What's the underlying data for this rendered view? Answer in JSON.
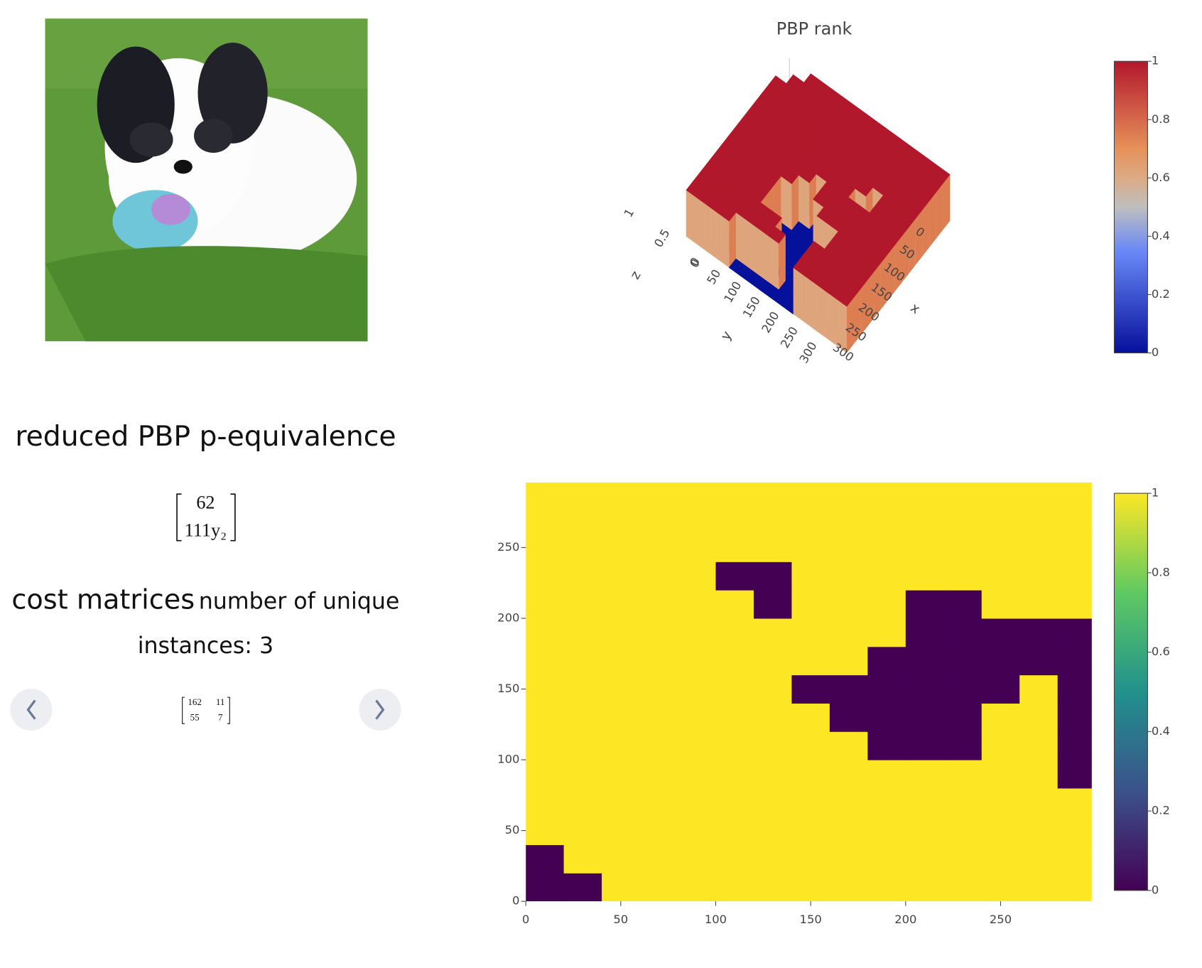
{
  "equivalence": {
    "title": "reduced PBP p-equivalence",
    "matrix": [
      62,
      "111y₂"
    ]
  },
  "cost_matrices": {
    "title": "cost matrices",
    "subtitle": "number of unique instances: 3",
    "matrix": [
      [
        162,
        11
      ],
      [
        55,
        7
      ]
    ]
  },
  "chart_data": [
    {
      "type": "surface",
      "title": "PBP rank",
      "xlabel": "x",
      "ylabel": "y",
      "zlabel": "z",
      "xlim": [
        0,
        300
      ],
      "ylim": [
        0,
        300
      ],
      "zlim": [
        0,
        1
      ],
      "xticks": [
        0,
        50,
        100,
        150,
        200,
        250,
        300
      ],
      "yticks": [
        0,
        50,
        100,
        150,
        200,
        250,
        300
      ],
      "zticks": [
        0,
        0.5,
        1
      ],
      "colorscale": [
        [
          0,
          "#05109b"
        ],
        [
          0.35,
          "#6a89f7"
        ],
        [
          0.5,
          "#bebebe"
        ],
        [
          0.6,
          "#dcaa84"
        ],
        [
          0.7,
          "#e6915a"
        ],
        [
          1,
          "#b2182b"
        ]
      ],
      "cticks": [
        0,
        0.2,
        0.4,
        0.6,
        0.8,
        1
      ],
      "z": [
        [
          0,
          0,
          1,
          1,
          1,
          1,
          1,
          1,
          1,
          1,
          1,
          1,
          1,
          1,
          1
        ],
        [
          0,
          1,
          1,
          1,
          1,
          1,
          1,
          1,
          1,
          1,
          1,
          1,
          1,
          1,
          1
        ],
        [
          1,
          1,
          1,
          1,
          1,
          1,
          1,
          1,
          1,
          1,
          1,
          1,
          1,
          1,
          1
        ],
        [
          1,
          1,
          1,
          1,
          1,
          1,
          1,
          1,
          1,
          1,
          1,
          1,
          1,
          1,
          1
        ],
        [
          1,
          1,
          1,
          1,
          1,
          1,
          1,
          1,
          1,
          1,
          1,
          1,
          1,
          1,
          0
        ],
        [
          1,
          1,
          1,
          1,
          1,
          1,
          1,
          1,
          1,
          0,
          0,
          0,
          1,
          1,
          0
        ],
        [
          1,
          1,
          1,
          1,
          1,
          1,
          1,
          1,
          0,
          0,
          0,
          0,
          1,
          1,
          0
        ],
        [
          1,
          1,
          1,
          1,
          1,
          1,
          1,
          0,
          0,
          0,
          0,
          0,
          0,
          1,
          0
        ],
        [
          1,
          1,
          1,
          1,
          1,
          1,
          1,
          1,
          1,
          0,
          0,
          0,
          0,
          0,
          0
        ],
        [
          1,
          1,
          1,
          1,
          1,
          1,
          1,
          1,
          1,
          1,
          0,
          0,
          0,
          0,
          0
        ],
        [
          1,
          1,
          1,
          1,
          1,
          1,
          0,
          1,
          1,
          1,
          0,
          0,
          1,
          1,
          1
        ],
        [
          1,
          1,
          1,
          1,
          1,
          0,
          0,
          1,
          1,
          1,
          1,
          1,
          1,
          1,
          1
        ],
        [
          1,
          1,
          1,
          1,
          1,
          1,
          1,
          1,
          1,
          1,
          1,
          1,
          1,
          1,
          1
        ],
        [
          1,
          1,
          1,
          1,
          1,
          1,
          1,
          1,
          1,
          1,
          1,
          1,
          1,
          1,
          1
        ],
        [
          1,
          1,
          1,
          1,
          1,
          1,
          1,
          1,
          1,
          1,
          1,
          1,
          1,
          1,
          1
        ]
      ]
    },
    {
      "type": "heatmap",
      "xlim": [
        0,
        298
      ],
      "ylim": [
        0,
        296
      ],
      "xticks": [
        0,
        50,
        100,
        150,
        200,
        250
      ],
      "yticks": [
        0,
        50,
        100,
        150,
        200,
        250
      ],
      "colorscale": [
        [
          0,
          "#440154"
        ],
        [
          0.25,
          "#3b528b"
        ],
        [
          0.5,
          "#21918c"
        ],
        [
          0.75,
          "#5ec962"
        ],
        [
          1,
          "#fde725"
        ]
      ],
      "cticks": [
        0,
        0.2,
        0.4,
        0.6,
        0.8,
        1
      ],
      "z": [
        [
          0,
          0,
          1,
          1,
          1,
          1,
          1,
          1,
          1,
          1,
          1,
          1,
          1,
          1,
          1
        ],
        [
          0,
          1,
          1,
          1,
          1,
          1,
          1,
          1,
          1,
          1,
          1,
          1,
          1,
          1,
          1
        ],
        [
          1,
          1,
          1,
          1,
          1,
          1,
          1,
          1,
          1,
          1,
          1,
          1,
          1,
          1,
          1
        ],
        [
          1,
          1,
          1,
          1,
          1,
          1,
          1,
          1,
          1,
          1,
          1,
          1,
          1,
          1,
          1
        ],
        [
          1,
          1,
          1,
          1,
          1,
          1,
          1,
          1,
          1,
          1,
          1,
          1,
          1,
          1,
          0
        ],
        [
          1,
          1,
          1,
          1,
          1,
          1,
          1,
          1,
          1,
          0,
          0,
          0,
          1,
          1,
          0
        ],
        [
          1,
          1,
          1,
          1,
          1,
          1,
          1,
          1,
          0,
          0,
          0,
          0,
          1,
          1,
          0
        ],
        [
          1,
          1,
          1,
          1,
          1,
          1,
          1,
          0,
          0,
          0,
          0,
          0,
          0,
          1,
          0
        ],
        [
          1,
          1,
          1,
          1,
          1,
          1,
          1,
          1,
          1,
          0,
          0,
          0,
          0,
          0,
          0
        ],
        [
          1,
          1,
          1,
          1,
          1,
          1,
          1,
          1,
          1,
          1,
          0,
          0,
          0,
          0,
          0
        ],
        [
          1,
          1,
          1,
          1,
          1,
          1,
          0,
          1,
          1,
          1,
          0,
          0,
          1,
          1,
          1
        ],
        [
          1,
          1,
          1,
          1,
          1,
          0,
          0,
          1,
          1,
          1,
          1,
          1,
          1,
          1,
          1
        ],
        [
          1,
          1,
          1,
          1,
          1,
          1,
          1,
          1,
          1,
          1,
          1,
          1,
          1,
          1,
          1
        ],
        [
          1,
          1,
          1,
          1,
          1,
          1,
          1,
          1,
          1,
          1,
          1,
          1,
          1,
          1,
          1
        ],
        [
          1,
          1,
          1,
          1,
          1,
          1,
          1,
          1,
          1,
          1,
          1,
          1,
          1,
          1,
          1
        ]
      ]
    }
  ]
}
